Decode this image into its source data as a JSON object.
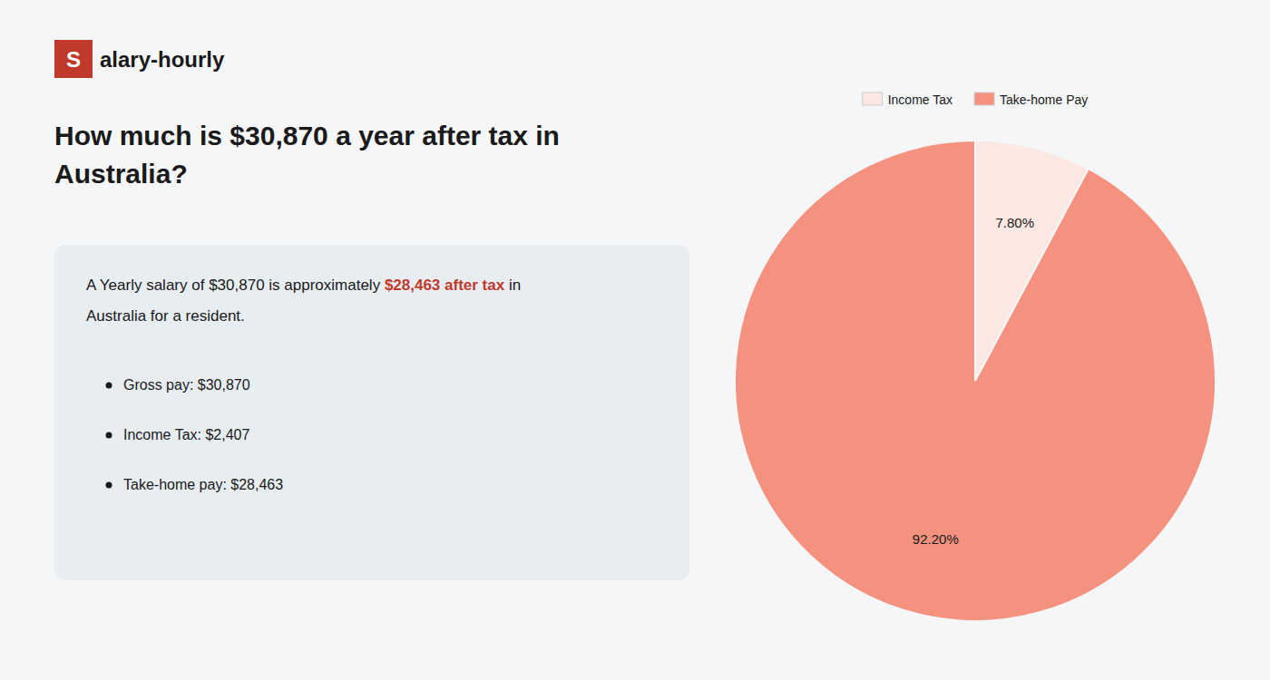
{
  "chart_data": {
    "type": "pie",
    "title": "How much is $30,870 a year after tax in\nAustralia?",
    "annotations": [
      {
        "text": "S"
      },
      {
        "text": "alary-hourly"
      },
      {
        "text": "A Yearly salary of $30,870 is approximately "
      },
      {
        "text": "$28,463 after tax",
        "color": "#c0392b"
      },
      {
        "text": " in"
      },
      {
        "text": "Australia for a resident."
      },
      {
        "text": "Gross pay: $30,870"
      },
      {
        "text": "Income Tax: $2,407"
      },
      {
        "text": "Take-home pay: $28,463"
      }
    ],
    "categories": [
      "Income Tax",
      "Take-home Pay"
    ],
    "values": [
      7.8,
      92.2
    ],
    "value_labels": [
      "7.80%",
      "92.20%"
    ],
    "colors": [
      "#fbe8e2",
      "#f4917f"
    ],
    "data_labels": true,
    "legend": "top"
  }
}
